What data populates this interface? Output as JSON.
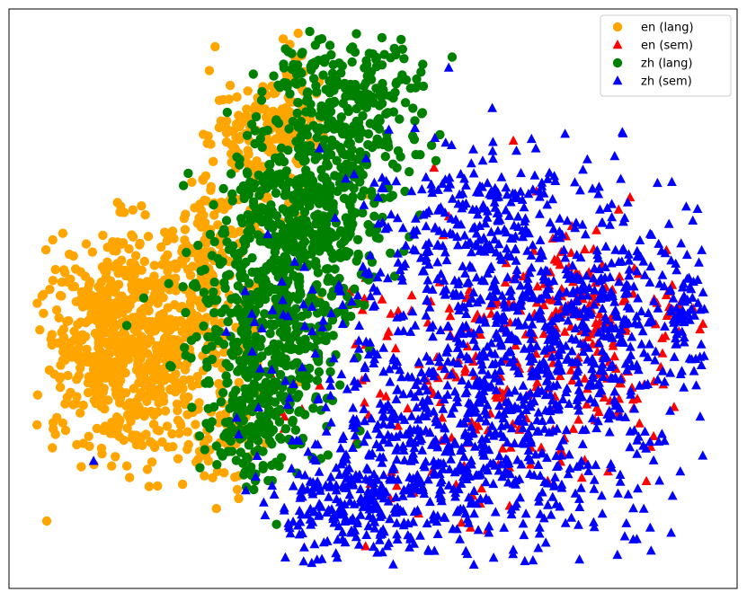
{
  "chart_data": {
    "type": "scatter",
    "title": "",
    "xlabel": "",
    "ylabel": "",
    "axes_visible": false,
    "ticks": false,
    "legend_position": "top-right",
    "series": [
      {
        "name": "en (lang)",
        "marker": "circle",
        "color": "#FFA500",
        "clusters": [
          {
            "cx": 150,
            "cy": 395,
            "sx": 50,
            "sy": 60,
            "n": 600
          },
          {
            "cx": 120,
            "cy": 330,
            "sx": 40,
            "sy": 40,
            "n": 150
          },
          {
            "cx": 300,
            "cy": 150,
            "sx": 35,
            "sy": 45,
            "n": 200
          },
          {
            "cx": 230,
            "cy": 300,
            "sx": 25,
            "sy": 60,
            "n": 150
          },
          {
            "cx": 250,
            "cy": 500,
            "sx": 20,
            "sy": 30,
            "n": 40
          }
        ]
      },
      {
        "name": "en (sem)",
        "marker": "triangle",
        "color": "#FF0000",
        "clusters": [
          {
            "cx": 560,
            "cy": 410,
            "sx": 100,
            "sy": 90,
            "n": 200
          },
          {
            "cx": 640,
            "cy": 330,
            "sx": 30,
            "sy": 30,
            "n": 80
          },
          {
            "cx": 690,
            "cy": 410,
            "sx": 30,
            "sy": 40,
            "n": 40
          },
          {
            "cx": 760,
            "cy": 345,
            "sx": 15,
            "sy": 12,
            "n": 20
          }
        ]
      },
      {
        "name": "zh (lang)",
        "marker": "circle",
        "color": "#008000",
        "clusters": [
          {
            "cx": 380,
            "cy": 120,
            "sx": 45,
            "sy": 45,
            "n": 300
          },
          {
            "cx": 340,
            "cy": 240,
            "sx": 50,
            "sy": 45,
            "n": 400
          },
          {
            "cx": 300,
            "cy": 360,
            "sx": 45,
            "sy": 55,
            "n": 400
          },
          {
            "cx": 290,
            "cy": 470,
            "sx": 25,
            "sy": 40,
            "n": 150
          }
        ]
      },
      {
        "name": "zh (sem)",
        "marker": "triangle",
        "color": "#0000FF",
        "clusters": [
          {
            "cx": 560,
            "cy": 400,
            "sx": 110,
            "sy": 105,
            "n": 1000
          },
          {
            "cx": 490,
            "cy": 520,
            "sx": 70,
            "sy": 50,
            "n": 250
          },
          {
            "cx": 390,
            "cy": 560,
            "sx": 40,
            "sy": 35,
            "n": 200
          },
          {
            "cx": 540,
            "cy": 240,
            "sx": 60,
            "sy": 35,
            "n": 150
          },
          {
            "cx": 690,
            "cy": 350,
            "sx": 50,
            "sy": 45,
            "n": 150
          },
          {
            "cx": 765,
            "cy": 348,
            "sx": 15,
            "sy": 15,
            "n": 25
          }
        ]
      }
    ]
  }
}
